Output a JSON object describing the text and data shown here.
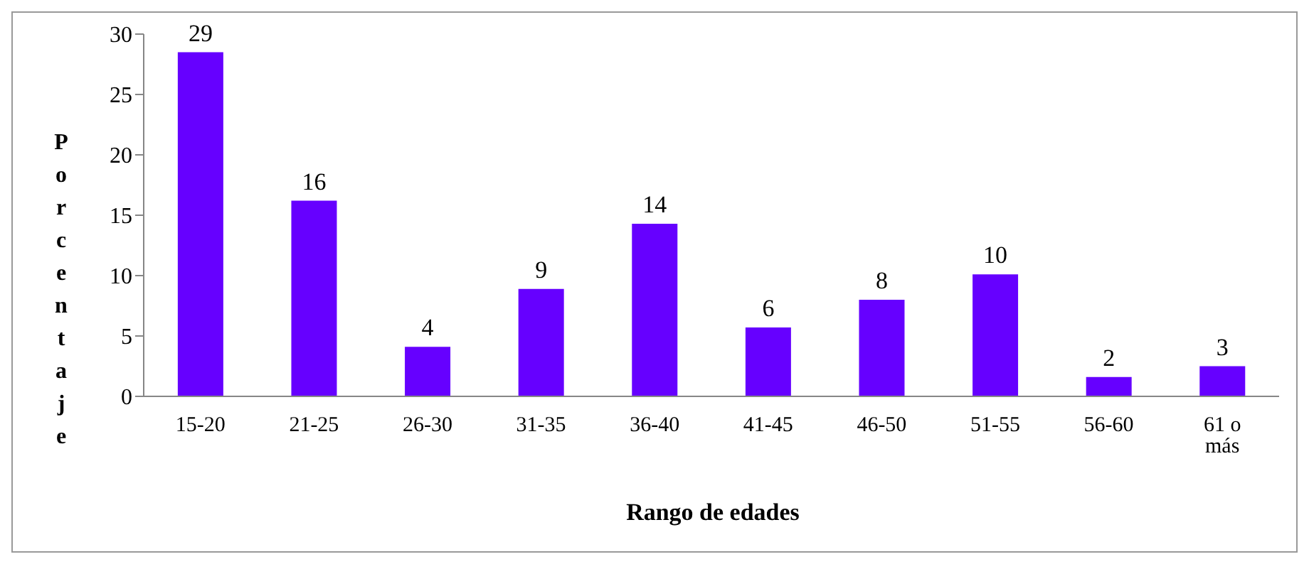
{
  "chart_data": {
    "type": "bar",
    "xlabel": "Rango de edades",
    "ylabel": "Porcentaje",
    "categories": [
      "15-20",
      "21-25",
      "26-30",
      "31-35",
      "36-40",
      "41-45",
      "46-50",
      "51-55",
      "56-60",
      "61 o más"
    ],
    "values": [
      28.5,
      16.2,
      4.1,
      8.9,
      14.3,
      5.7,
      8.0,
      10.1,
      1.6,
      2.5
    ],
    "value_labels": [
      "29",
      "16",
      "4",
      "9",
      "14",
      "6",
      "8",
      "10",
      "2",
      "3"
    ],
    "color": "#6600ff",
    "ylim": [
      0,
      30
    ],
    "yticks": [
      0,
      5,
      10,
      15,
      20,
      25,
      30
    ],
    "grid": false
  }
}
